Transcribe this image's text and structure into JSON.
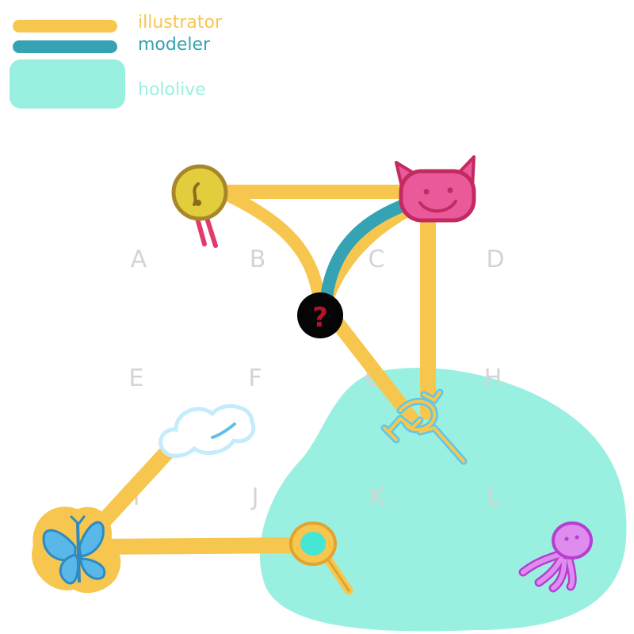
{
  "colors": {
    "illustrator": "#f7c64f",
    "modeler": "#35a3b3",
    "hololive": "#9af0e0"
  },
  "legend": [
    {
      "key": "illustrator",
      "label": "illustrator"
    },
    {
      "key": "modeler",
      "label": "modeler"
    },
    {
      "key": "hololive",
      "label": "hololive"
    }
  ],
  "grid_letters": [
    "A",
    "B",
    "C",
    "D",
    "E",
    "F",
    "G",
    "H",
    "I",
    "J",
    "K",
    "L"
  ],
  "nodes": {
    "bell": "bell-icon",
    "devil": "devil-face-icon",
    "unknown": "question-mark-icon",
    "unknown_mark": "?",
    "dragon": "dragon-icon",
    "cloud": "cloud-icon",
    "butterfly": "butterfly-icon",
    "mirror": "hand-mirror-icon",
    "octopus": "octopus-icon"
  }
}
